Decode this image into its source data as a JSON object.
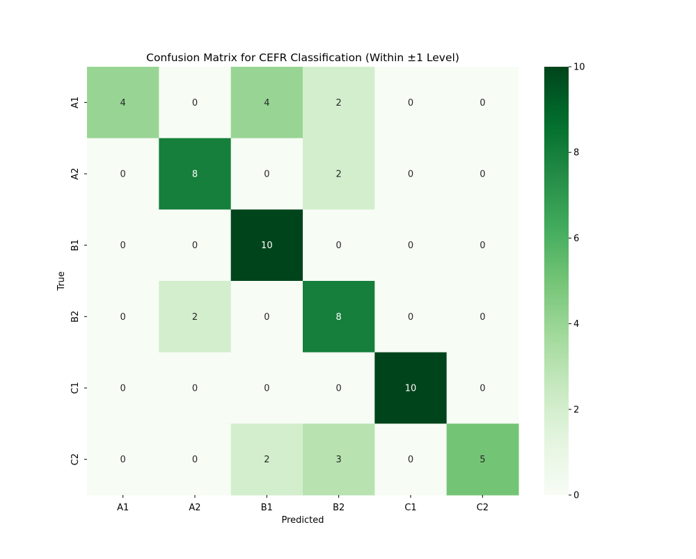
{
  "chart_data": {
    "type": "heatmap",
    "title": "Confusion Matrix for CEFR Classification (Within ±1 Level)",
    "xlabel": "Predicted",
    "ylabel": "True",
    "x_categories": [
      "A1",
      "A2",
      "B1",
      "B2",
      "C1",
      "C2"
    ],
    "y_categories": [
      "A1",
      "A2",
      "B1",
      "B2",
      "C1",
      "C2"
    ],
    "values": [
      [
        4,
        0,
        4,
        2,
        0,
        0
      ],
      [
        0,
        8,
        0,
        2,
        0,
        0
      ],
      [
        0,
        0,
        10,
        0,
        0,
        0
      ],
      [
        0,
        2,
        0,
        8,
        0,
        0
      ],
      [
        0,
        0,
        0,
        0,
        10,
        0
      ],
      [
        0,
        0,
        2,
        3,
        0,
        5
      ]
    ],
    "colormap": "Greens",
    "color_range": [
      0,
      10
    ],
    "colorbar_ticks": [
      0,
      2,
      4,
      6,
      8,
      10
    ],
    "annotated": true,
    "grid": false
  }
}
